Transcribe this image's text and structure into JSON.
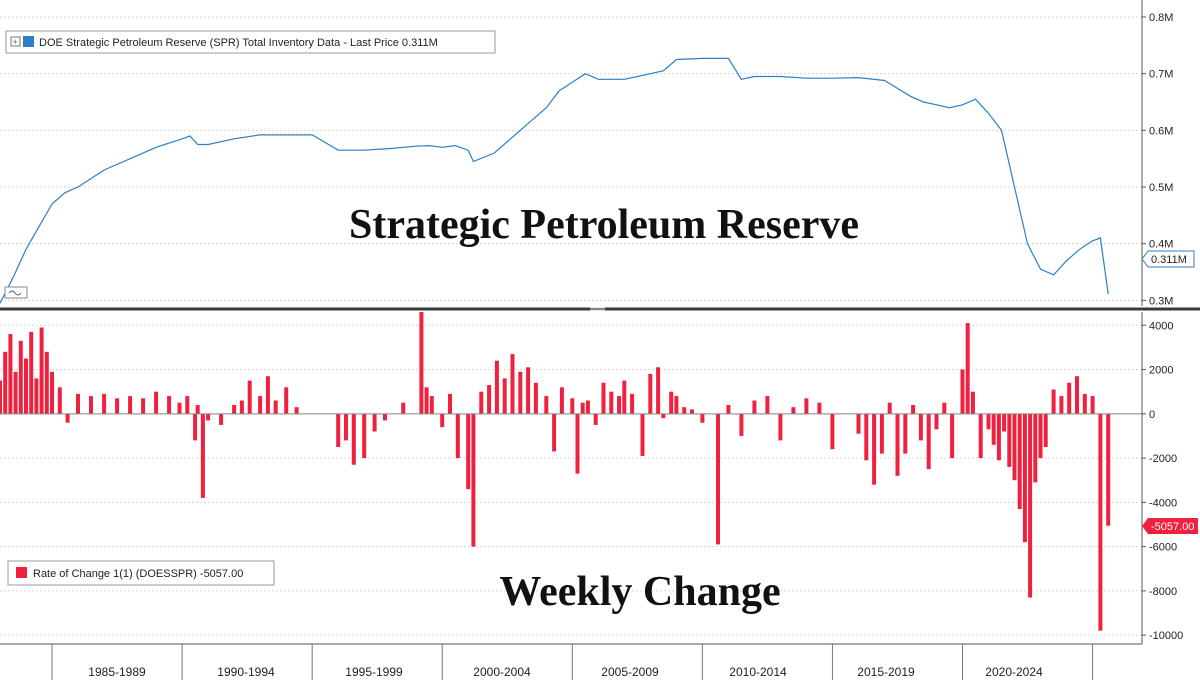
{
  "overlay": {
    "top_title": "Strategic Petroleum Reserve",
    "bottom_title": "Weekly Change"
  },
  "colors": {
    "line": "#2f7fc8",
    "bar": "#f0213f",
    "badge_line": "#2f7fc8",
    "badge_bar": "#f0213f",
    "grid": "#d6d6d6",
    "divider": "#3a3a3a"
  },
  "x_axis": {
    "labels": [
      "1985-1989",
      "1990-1994",
      "1995-1999",
      "2000-2004",
      "2005-2009",
      "2010-2014",
      "2015-2019",
      "2020-2024"
    ]
  },
  "chart_data": [
    {
      "type": "line",
      "legend": "DOE Strategic Petroleum Reserve (SPR) Total Inventory Data - Last Price 0.311M",
      "last_value_label": "0.311M",
      "unit": "M",
      "y_ticks": [
        "0.3M",
        "0.4M",
        "0.5M",
        "0.6M",
        "0.7M",
        "0.8M"
      ],
      "y_tick_values": [
        0.3,
        0.4,
        0.5,
        0.6,
        0.7,
        0.8
      ],
      "ylim": [
        0.29,
        0.83
      ],
      "xlim": [
        1983.0,
        2026.9
      ],
      "grid": true,
      "x": [
        1983.0,
        1983.5,
        1984.0,
        1984.5,
        1985.0,
        1985.5,
        1986.0,
        1987.0,
        1988.0,
        1989.0,
        1990.0,
        1990.3,
        1990.6,
        1991.0,
        1992.0,
        1993.0,
        1994.0,
        1995.0,
        1996.0,
        1996.5,
        1997.0,
        1998.0,
        1999.0,
        1999.5,
        2000.0,
        2000.5,
        2001.0,
        2001.2,
        2002.0,
        2003.0,
        2004.0,
        2004.5,
        2005.0,
        2005.5,
        2006.0,
        2007.0,
        2008.0,
        2008.5,
        2009.0,
        2010.0,
        2011.0,
        2011.5,
        2012.0,
        2013.0,
        2014.0,
        2015.0,
        2016.0,
        2017.0,
        2018.0,
        2018.5,
        2019.0,
        2019.5,
        2020.0,
        2020.5,
        2021.0,
        2021.5,
        2022.0,
        2022.5,
        2023.0,
        2023.5,
        2024.0,
        2024.5,
        2025.0,
        2025.3,
        2025.6
      ],
      "y": [
        0.295,
        0.34,
        0.39,
        0.43,
        0.47,
        0.49,
        0.5,
        0.53,
        0.55,
        0.57,
        0.585,
        0.59,
        0.575,
        0.575,
        0.585,
        0.592,
        0.592,
        0.592,
        0.565,
        0.565,
        0.565,
        0.568,
        0.572,
        0.573,
        0.57,
        0.573,
        0.565,
        0.545,
        0.56,
        0.6,
        0.64,
        0.67,
        0.685,
        0.7,
        0.69,
        0.69,
        0.7,
        0.705,
        0.725,
        0.727,
        0.727,
        0.69,
        0.695,
        0.695,
        0.692,
        0.692,
        0.693,
        0.688,
        0.66,
        0.65,
        0.645,
        0.64,
        0.645,
        0.655,
        0.63,
        0.6,
        0.5,
        0.4,
        0.355,
        0.345,
        0.37,
        0.39,
        0.405,
        0.41,
        0.311
      ]
    },
    {
      "type": "bar",
      "legend": "Rate of Change 1(1) (DOESSPR) -5057.00",
      "last_value_label": "-5057.00",
      "y_ticks": [
        "-10000",
        "-8000",
        "-6000",
        "-4000",
        "-2000",
        "0",
        "2000",
        "4000"
      ],
      "y_tick_values": [
        -10000,
        -8000,
        -6000,
        -4000,
        -2000,
        0,
        2000,
        4000
      ],
      "ylim": [
        -10400,
        4600
      ],
      "xlim": [
        1983.0,
        2026.9
      ],
      "grid": true,
      "x": [
        1983.0,
        1983.2,
        1983.4,
        1983.6,
        1983.8,
        1984.0,
        1984.2,
        1984.4,
        1984.6,
        1984.8,
        1985.0,
        1985.3,
        1985.6,
        1986.0,
        1986.5,
        1987.0,
        1987.5,
        1988.0,
        1988.5,
        1989.0,
        1989.5,
        1989.9,
        1990.2,
        1990.5,
        1990.6,
        1990.8,
        1991.0,
        1991.5,
        1992.0,
        1992.3,
        1992.6,
        1993.0,
        1993.3,
        1993.6,
        1994.0,
        1994.4,
        1996.0,
        1996.3,
        1996.6,
        1997.0,
        1997.4,
        1997.8,
        1998.5,
        1999.2,
        1999.4,
        1999.6,
        2000.0,
        2000.3,
        2000.6,
        2001.0,
        2001.2,
        2001.5,
        2001.8,
        2002.1,
        2002.4,
        2002.7,
        2003.0,
        2003.3,
        2003.6,
        2004.0,
        2004.3,
        2004.6,
        2005.0,
        2005.2,
        2005.4,
        2005.6,
        2005.9,
        2006.2,
        2006.5,
        2006.8,
        2007.0,
        2007.3,
        2007.7,
        2008.0,
        2008.3,
        2008.5,
        2008.8,
        2009.0,
        2009.3,
        2009.6,
        2010.0,
        2010.6,
        2011.0,
        2011.5,
        2012.0,
        2012.5,
        2013.0,
        2013.5,
        2014.0,
        2014.5,
        2015.0,
        2016.0,
        2016.3,
        2016.6,
        2016.9,
        2017.2,
        2017.5,
        2017.8,
        2018.1,
        2018.4,
        2018.7,
        2019.0,
        2019.3,
        2019.6,
        2020.0,
        2020.2,
        2020.4,
        2020.7,
        2021.0,
        2021.2,
        2021.4,
        2021.6,
        2021.8,
        2022.0,
        2022.2,
        2022.4,
        2022.6,
        2022.8,
        2023.0,
        2023.2,
        2023.5,
        2023.8,
        2024.1,
        2024.4,
        2024.7,
        2025.0,
        2025.3,
        2025.6
      ],
      "values": [
        1500,
        2800,
        3600,
        1900,
        3300,
        2500,
        3700,
        1600,
        3900,
        2800,
        1900,
        1200,
        -400,
        900,
        800,
        900,
        700,
        800,
        700,
        1000,
        800,
        500,
        800,
        -1200,
        400,
        -3800,
        -300,
        -500,
        400,
        600,
        1500,
        800,
        1700,
        600,
        1200,
        300,
        -1500,
        -1200,
        -2300,
        -2000,
        -800,
        -300,
        500,
        4600,
        1200,
        800,
        -600,
        900,
        -2000,
        -3400,
        -6000,
        1000,
        1300,
        2400,
        1600,
        2700,
        1900,
        2100,
        1400,
        800,
        -1700,
        1200,
        700,
        -2700,
        500,
        600,
        -500,
        1400,
        1000,
        800,
        1500,
        900,
        -1900,
        1800,
        2100,
        -200,
        1000,
        800,
        300,
        200,
        -400,
        -5900,
        400,
        -1000,
        600,
        800,
        -1200,
        300,
        700,
        500,
        -1600,
        -900,
        -2100,
        -3200,
        -1800,
        500,
        -2800,
        -1800,
        400,
        -1200,
        -2500,
        -700,
        500,
        -2000,
        2000,
        4100,
        1000,
        -2000,
        -700,
        -1400,
        -2100,
        -800,
        -2400,
        -3000,
        -4300,
        -5800,
        -8300,
        -3100,
        -2000,
        -1500,
        1100,
        800,
        1400,
        1700,
        900,
        800,
        -9800,
        -5057
      ]
    }
  ]
}
